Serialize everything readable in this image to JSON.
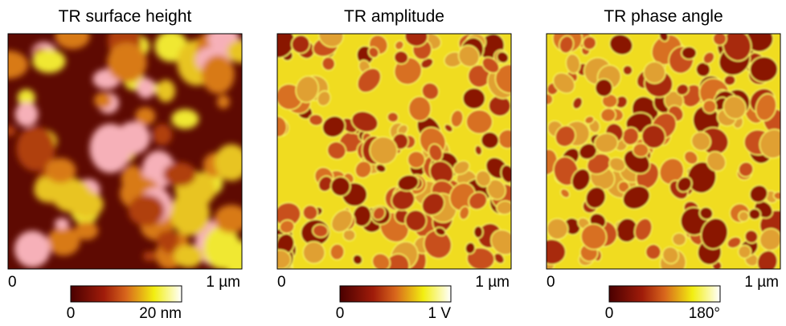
{
  "panels": [
    {
      "title": "TR surface height",
      "axis_start": "0",
      "axis_end": "1 µm",
      "colorbar_min": "0",
      "colorbar_max": "20 nm"
    },
    {
      "title": "TR amplitude",
      "axis_start": "0",
      "axis_end": "1 µm",
      "colorbar_min": "0",
      "colorbar_max": "1 V"
    },
    {
      "title": "TR phase angle",
      "axis_start": "0",
      "axis_end": "1 µm",
      "colorbar_min": "0",
      "colorbar_max": "180°"
    }
  ]
}
